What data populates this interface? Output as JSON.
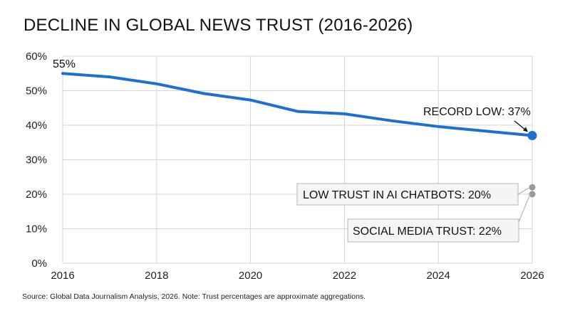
{
  "title": "DECLINE IN GLOBAL NEWS TRUST (2016-2026)",
  "source": "Source: Global Data Journalism Analysis, 2026. Note: Trust percentages are approximate aggregations.",
  "colors": {
    "series": "#1f6fd1",
    "markers_secondary": "#9a9a9a",
    "grid": "#d6d6d6"
  },
  "chart_data": {
    "type": "line",
    "title": "DECLINE IN GLOBAL NEWS TRUST (2016-2026)",
    "xlabel": "",
    "ylabel": "",
    "xlim": [
      2016,
      2026
    ],
    "ylim": [
      0,
      60
    ],
    "x_ticks": [
      2016,
      2018,
      2020,
      2022,
      2024,
      2026
    ],
    "x_tick_labels": [
      "2016",
      "2018",
      "2020",
      "2022",
      "2024",
      "2026"
    ],
    "y_ticks": [
      0,
      10,
      20,
      30,
      40,
      50,
      60
    ],
    "y_tick_labels": [
      "0%",
      "10%",
      "20%",
      "30%",
      "40%",
      "50%",
      "60%"
    ],
    "grid": true,
    "series": [
      {
        "x": [
          2016,
          2017,
          2018,
          2019,
          2020,
          2021,
          2022,
          2023,
          2024,
          2025,
          2026
        ],
        "values": [
          55,
          54,
          52,
          49.2,
          47.3,
          44,
          43.3,
          41.3,
          39.6,
          38.3,
          37
        ]
      }
    ],
    "points": [
      {
        "x": 2026,
        "value": 22
      },
      {
        "x": 2026,
        "value": 20
      }
    ],
    "annotations": [
      {
        "text": "55%",
        "x": 2016,
        "value": 55
      },
      {
        "text": "RECORD LOW: 37%",
        "x": 2026,
        "value": 37
      },
      {
        "text": "LOW TRUST IN AI CHATBOTS: 20%",
        "x": 2026,
        "value": 20
      },
      {
        "text": "SOCIAL MEDIA TRUST: 22%",
        "x": 2026,
        "value": 22
      }
    ]
  }
}
